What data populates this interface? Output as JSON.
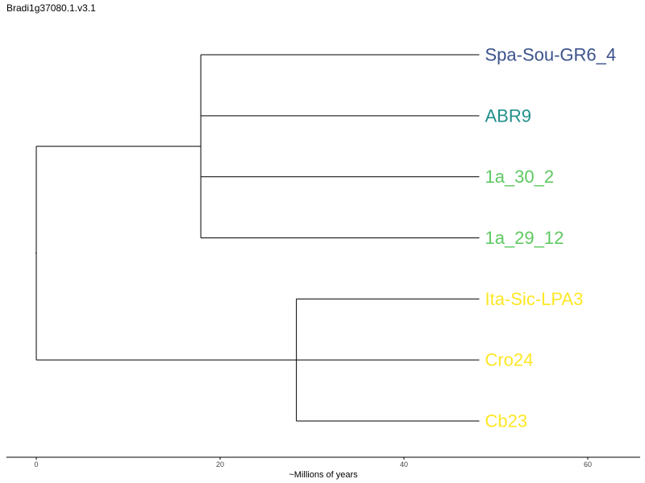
{
  "title": "Bradi1g37080.1.v3.1",
  "axis": {
    "label": "~Millions of years",
    "ticks": [
      0,
      20,
      40,
      60
    ],
    "range": [
      -3,
      66
    ]
  },
  "tree": {
    "root_x": 0,
    "clades": [
      {
        "node_x": 17.9,
        "tips": [
          "Spa-Sou-GR6_4",
          "ABR9",
          "1a_30_2",
          "1a_29_12"
        ]
      },
      {
        "node_x": 28.3,
        "tips": [
          "Ita-Sic-LPA3",
          "Cro24",
          "Cb23"
        ]
      }
    ],
    "tip_x": 48.2
  },
  "tips": [
    {
      "label": "Spa-Sou-GR6_4",
      "color": "#3b528b"
    },
    {
      "label": "ABR9",
      "color": "#21908c"
    },
    {
      "label": "1a_30_2",
      "color": "#5ec962"
    },
    {
      "label": "1a_29_12",
      "color": "#5ec962"
    },
    {
      "label": "Ita-Sic-LPA3",
      "color": "#fde725"
    },
    {
      "label": "Cro24",
      "color": "#fde725"
    },
    {
      "label": "Cb23",
      "color": "#fde725"
    }
  ]
}
